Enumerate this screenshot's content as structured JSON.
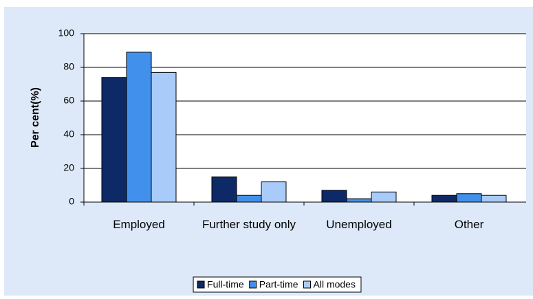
{
  "chart_data": {
    "type": "bar",
    "y_label": "Per cent(%)",
    "categories": [
      "Employed",
      "Further study only",
      "Unemployed",
      "Other"
    ],
    "series": [
      {
        "name": "Full-time",
        "color": "#0e2a66",
        "values": [
          74,
          15,
          7,
          4
        ]
      },
      {
        "name": "Part-time",
        "color": "#4191ec",
        "values": [
          89,
          4,
          2,
          5
        ]
      },
      {
        "name": "All modes",
        "color": "#a9cbfa",
        "values": [
          77,
          12,
          6,
          4
        ]
      }
    ],
    "ylim": [
      0,
      100
    ],
    "yticks": [
      0,
      20,
      40,
      60,
      80,
      100
    ],
    "grid": true,
    "legend": "bottom"
  }
}
